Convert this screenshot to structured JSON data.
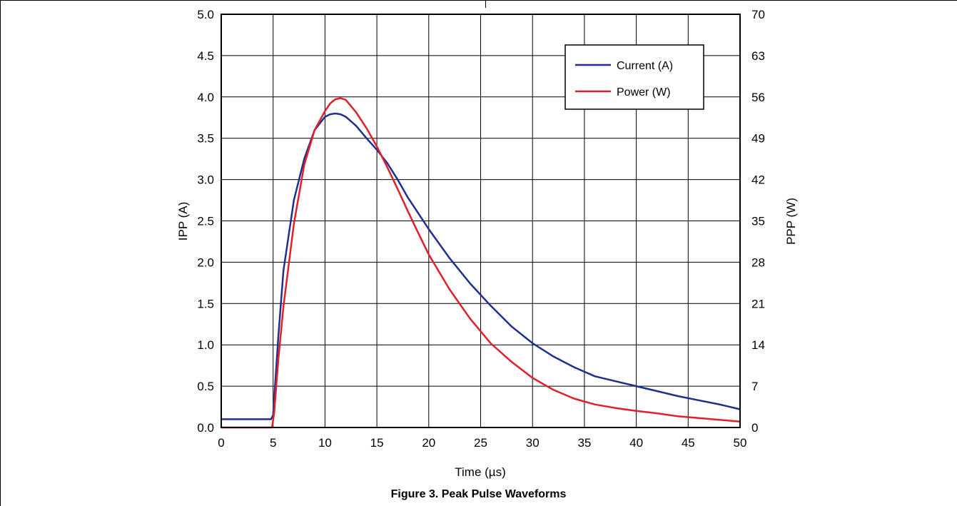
{
  "caption": "Figure 3. Peak Pulse Waveforms",
  "chart_data": {
    "type": "line",
    "xlabel": "Time (µs)",
    "ylabel_left": "IPP (A)",
    "ylabel_right": "PPP (W)",
    "xlim": [
      0,
      50
    ],
    "ylim_left": [
      0,
      5.0
    ],
    "ylim_right": [
      0,
      70
    ],
    "x_ticks": [
      "0",
      "5",
      "10",
      "15",
      "20",
      "25",
      "30",
      "35",
      "40",
      "45",
      "50"
    ],
    "y_ticks_left": [
      "0.0",
      "0.5",
      "1.0",
      "1.5",
      "2.0",
      "2.5",
      "3.0",
      "3.5",
      "4.0",
      "4.5",
      "5.0"
    ],
    "y_ticks_right": [
      "0",
      "7",
      "14",
      "21",
      "28",
      "35",
      "42",
      "49",
      "56",
      "63",
      "70"
    ],
    "grid": true,
    "legend_position": "top-right",
    "series": [
      {
        "name": "Current (A)",
        "axis": "left",
        "color": "#1f2f8f",
        "x": [
          0,
          4.8,
          5.0,
          5.5,
          6,
          7,
          8,
          9,
          10,
          10.5,
          11,
          11.5,
          12,
          13,
          14,
          15,
          16,
          17,
          18,
          19,
          20,
          22,
          24,
          26,
          28,
          30,
          32,
          34,
          36,
          38,
          40,
          42,
          44,
          46,
          48,
          50
        ],
        "values": [
          0.1,
          0.1,
          0.15,
          1.1,
          1.9,
          2.75,
          3.25,
          3.6,
          3.76,
          3.79,
          3.8,
          3.79,
          3.76,
          3.65,
          3.5,
          3.36,
          3.2,
          3.0,
          2.78,
          2.59,
          2.4,
          2.05,
          1.74,
          1.47,
          1.22,
          1.02,
          0.86,
          0.73,
          0.62,
          0.56,
          0.5,
          0.44,
          0.38,
          0.33,
          0.28,
          0.22
        ]
      },
      {
        "name": "Power (W)",
        "axis": "right",
        "color": "#e0202a",
        "x": [
          0,
          4.9,
          5.1,
          5.5,
          6,
          7,
          8,
          9,
          10,
          10.5,
          11,
          11.5,
          12,
          13,
          14,
          15,
          16,
          17,
          18,
          19,
          20,
          22,
          24,
          26,
          28,
          30,
          32,
          34,
          36,
          38,
          40,
          42,
          44,
          46,
          48,
          50
        ],
        "values": [
          0,
          0,
          2.5,
          11.5,
          20.5,
          34.5,
          44.5,
          50.4,
          53.6,
          54.9,
          55.6,
          55.8,
          55.5,
          53.4,
          50.7,
          47.6,
          44.1,
          40.4,
          36.6,
          32.9,
          29.3,
          23.4,
          18.4,
          14.2,
          11.1,
          8.4,
          6.4,
          4.9,
          3.9,
          3.3,
          2.8,
          2.4,
          1.9,
          1.6,
          1.3,
          1.0
        ]
      }
    ]
  }
}
